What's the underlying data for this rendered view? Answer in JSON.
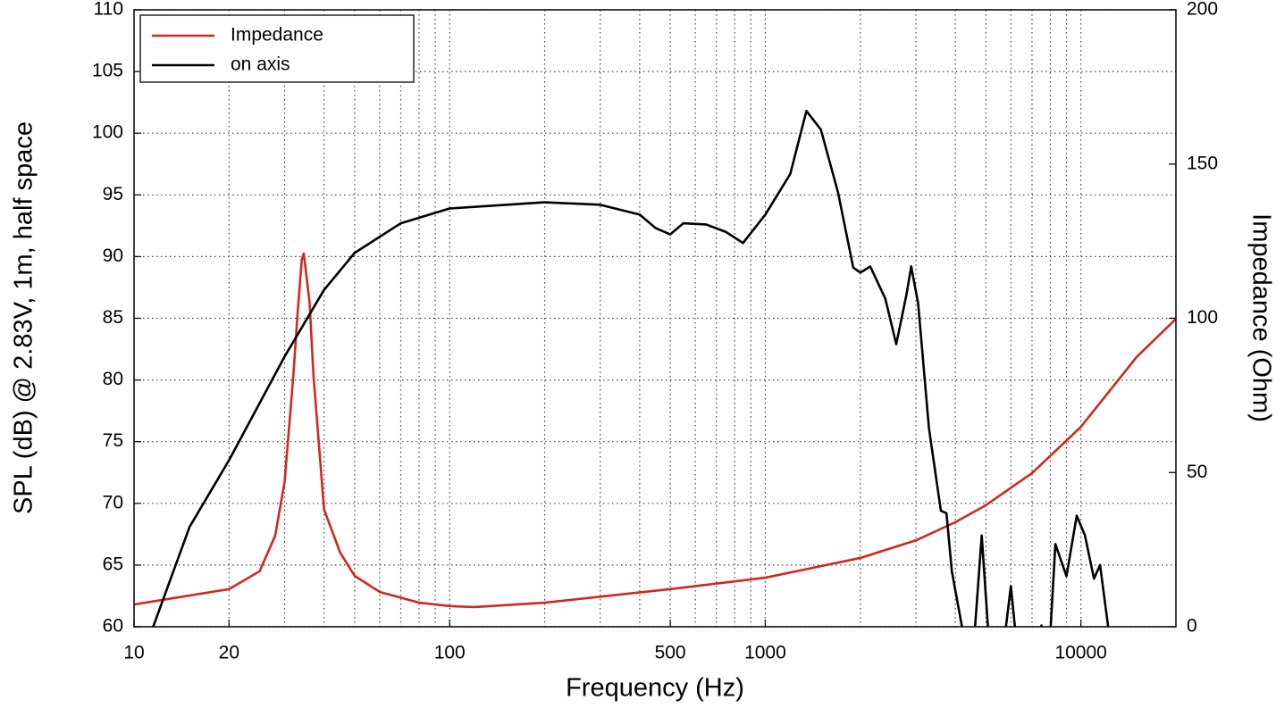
{
  "chart_data": {
    "type": "line",
    "xlabel": "Frequency (Hz)",
    "ylabel": "SPL (dB) @ 2.83V, 1m, half space",
    "y2label": "Impedance (Ohm)",
    "xscale": "log",
    "xlim": [
      10,
      20000
    ],
    "xticks": [
      10,
      20,
      100,
      500,
      1000,
      10000
    ],
    "xgrid": [
      20,
      30,
      40,
      50,
      60,
      70,
      80,
      90,
      100,
      200,
      300,
      400,
      500,
      600,
      700,
      800,
      900,
      1000,
      2000,
      3000,
      4000,
      5000,
      6000,
      7000,
      8000,
      9000,
      10000
    ],
    "ylim": [
      60,
      110
    ],
    "yticks": [
      60,
      65,
      70,
      75,
      80,
      85,
      90,
      95,
      100,
      105,
      110
    ],
    "y2lim": [
      0,
      200
    ],
    "y2ticks": [
      0,
      50,
      100,
      150,
      200
    ],
    "grid": true,
    "legend": "upper left",
    "series": [
      {
        "name": "Impedance",
        "color": "#d0281e",
        "axis": "y2",
        "x": [
          10,
          20,
          25,
          28,
          30,
          32,
          33,
          34,
          34.5,
          36,
          37,
          40,
          45,
          50,
          60,
          80,
          100,
          120,
          200,
          500,
          1000,
          2000,
          3000,
          4000,
          5000,
          7000,
          10000,
          15000,
          20000
        ],
        "values": [
          7.2,
          12.2,
          18,
          29.5,
          47,
          82,
          102,
          119,
          121,
          105,
          82,
          38,
          24,
          16.5,
          11.3,
          7.8,
          6.7,
          6.4,
          7.8,
          12.2,
          15.9,
          22.3,
          28,
          33.9,
          39.4,
          49.8,
          64.8,
          87.4,
          99.8
        ]
      },
      {
        "name": "on axis",
        "color": "#000000",
        "x": [
          11.5,
          15,
          20,
          30,
          40,
          50,
          70,
          100,
          200,
          300,
          400,
          450,
          500,
          550,
          650,
          750,
          850,
          1000,
          1200,
          1350,
          1500,
          1700,
          1900,
          2000,
          2150,
          2400,
          2600,
          2800,
          2900,
          3050,
          3300,
          3600,
          3750,
          3900,
          4200,
          4500,
          4850,
          5200,
          5600,
          6000,
          6400,
          7000,
          7500,
          7900,
          8300,
          9000,
          9700,
          10300,
          11000,
          11500,
          12200,
          12600
        ],
        "values": [
          60,
          68.1,
          73.5,
          81.9,
          87.3,
          90.3,
          92.7,
          93.9,
          94.4,
          94.2,
          93.4,
          92.3,
          91.8,
          92.7,
          92.6,
          92,
          91.1,
          93.4,
          96.7,
          101.8,
          100.3,
          95.2,
          89.1,
          88.7,
          89.2,
          86.6,
          82.9,
          86.9,
          89.2,
          86.2,
          76.1,
          69.4,
          69.2,
          64.5,
          60,
          56,
          67.4,
          56,
          57,
          63.3,
          56,
          58,
          60.1,
          57,
          66.7,
          64.1,
          69,
          67.4,
          63.9,
          65,
          60,
          55
        ]
      }
    ]
  }
}
